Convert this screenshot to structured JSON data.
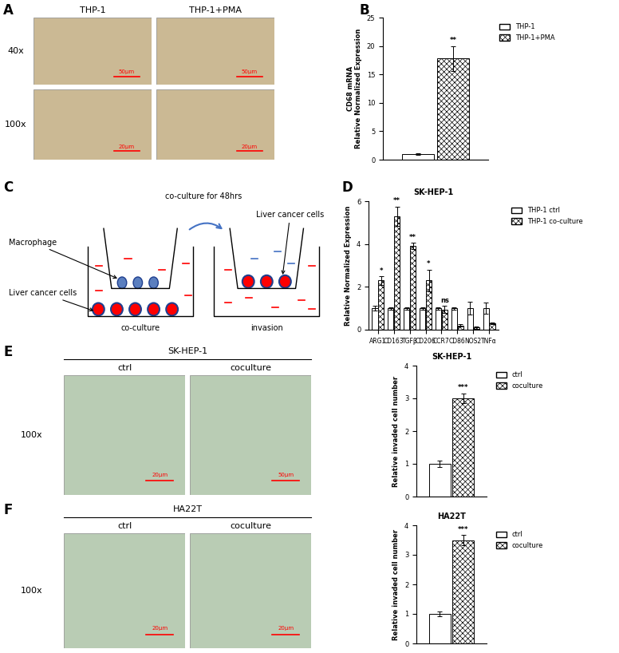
{
  "image_panels": [
    {
      "panel": "A",
      "columns": [
        "THP-1",
        "THP-1+PMA"
      ],
      "rows": [
        "40x",
        "100x"
      ],
      "scale_bars": [
        [
          "50μm",
          "50μm"
        ],
        [
          "20μm",
          "20μm"
        ]
      ]
    },
    {
      "panel": "E",
      "title": "SK-HEP-1",
      "columns": [
        "ctrl",
        "coculture"
      ],
      "rows": [
        "100x"
      ],
      "scale_bars": [
        [
          "20μm",
          "50μm"
        ]
      ]
    },
    {
      "panel": "F",
      "title": "HA22T",
      "columns": [
        "ctrl",
        "coculture"
      ],
      "rows": [
        "100x"
      ],
      "scale_bars": [
        [
          "20μm",
          "20μm"
        ]
      ]
    }
  ],
  "diagram": {
    "panel": "C",
    "title": "co-culture for 48hrs",
    "wells": [
      "co-culture",
      "invasion"
    ],
    "callouts": [
      "Macrophage",
      "Liver cancer cells",
      "Liver cancer cells"
    ]
  },
  "chart_data": [
    {
      "panel": "B",
      "type": "bar",
      "y_label": "CD68 mRNA\nRelative Normalized Expression",
      "categories": [
        null
      ],
      "tick_labels": "y",
      "series": [
        {
          "name": "THP-1",
          "color": "#ffffff",
          "values": [
            1.0
          ],
          "errors": [
            0.1
          ]
        },
        {
          "name": "THP-1+PMA",
          "color": "#ffffff",
          "values": [
            17.8
          ],
          "errors": [
            2.2
          ]
        }
      ],
      "significance": [
        "**"
      ],
      "ylim": [
        0,
        25
      ],
      "yticks": [
        0,
        5,
        10,
        15,
        20,
        25
      ],
      "legend": "upper left"
    },
    {
      "panel": "D",
      "type": "bar",
      "title": "SK-HEP-1",
      "y_label": "Relative Normalized Expression",
      "categories": [
        "ARG1",
        "CD163",
        "TGFβ",
        "CD206",
        "CCR7",
        "CD86",
        "NOS2",
        "TNFα"
      ],
      "series": [
        {
          "name": "THP-1 ctrl",
          "color": "#ffffff",
          "values": [
            1.0,
            1.0,
            1.0,
            1.0,
            1.0,
            1.0,
            1.0,
            1.0
          ],
          "errors": [
            0.1,
            0.05,
            0.05,
            0.05,
            0.05,
            0.05,
            0.3,
            0.25
          ]
        },
        {
          "name": "THP-1 co-culture",
          "color": "#ffffff",
          "values": [
            2.3,
            5.3,
            3.9,
            2.3,
            0.95,
            0.2,
            0.1,
            0.3
          ],
          "errors": [
            0.2,
            0.45,
            0.15,
            0.5,
            0.15,
            0.05,
            0.05,
            0.05
          ]
        }
      ],
      "significance": [
        "*",
        "**",
        "**",
        "*",
        "ns",
        null,
        null,
        null
      ],
      "ylim": [
        0,
        6
      ],
      "yticks": [
        0,
        2,
        4,
        6
      ],
      "legend": "upper left"
    },
    {
      "type": "bar",
      "title": "SK-HEP-1",
      "y_label": "Relative invaded cell number",
      "categories": [
        null
      ],
      "tick_labels": "y",
      "series": [
        {
          "name": "ctrl",
          "color": "#ffffff",
          "values": [
            1.0
          ],
          "errors": [
            0.1
          ]
        },
        {
          "name": "coculture",
          "color": "#ffffff",
          "values": [
            3.0
          ],
          "errors": [
            0.15
          ]
        }
      ],
      "significance": [
        "***"
      ],
      "ylim": [
        0,
        4
      ],
      "yticks": [
        0,
        1,
        2,
        3,
        4
      ],
      "legend": "upper left"
    },
    {
      "type": "bar",
      "title": "HA22T",
      "y_label": "Relative invaded cell number",
      "categories": [
        null
      ],
      "tick_labels": "y",
      "series": [
        {
          "name": "ctrl",
          "color": "#ffffff",
          "values": [
            1.0
          ],
          "errors": [
            0.08
          ]
        },
        {
          "name": "coculture",
          "color": "#ffffff",
          "values": [
            3.5
          ],
          "errors": [
            0.18
          ]
        }
      ],
      "significance": [
        "***"
      ],
      "ylim": [
        0,
        4
      ],
      "yticks": [
        0,
        1,
        2,
        3,
        4
      ],
      "legend": "upper left"
    }
  ]
}
